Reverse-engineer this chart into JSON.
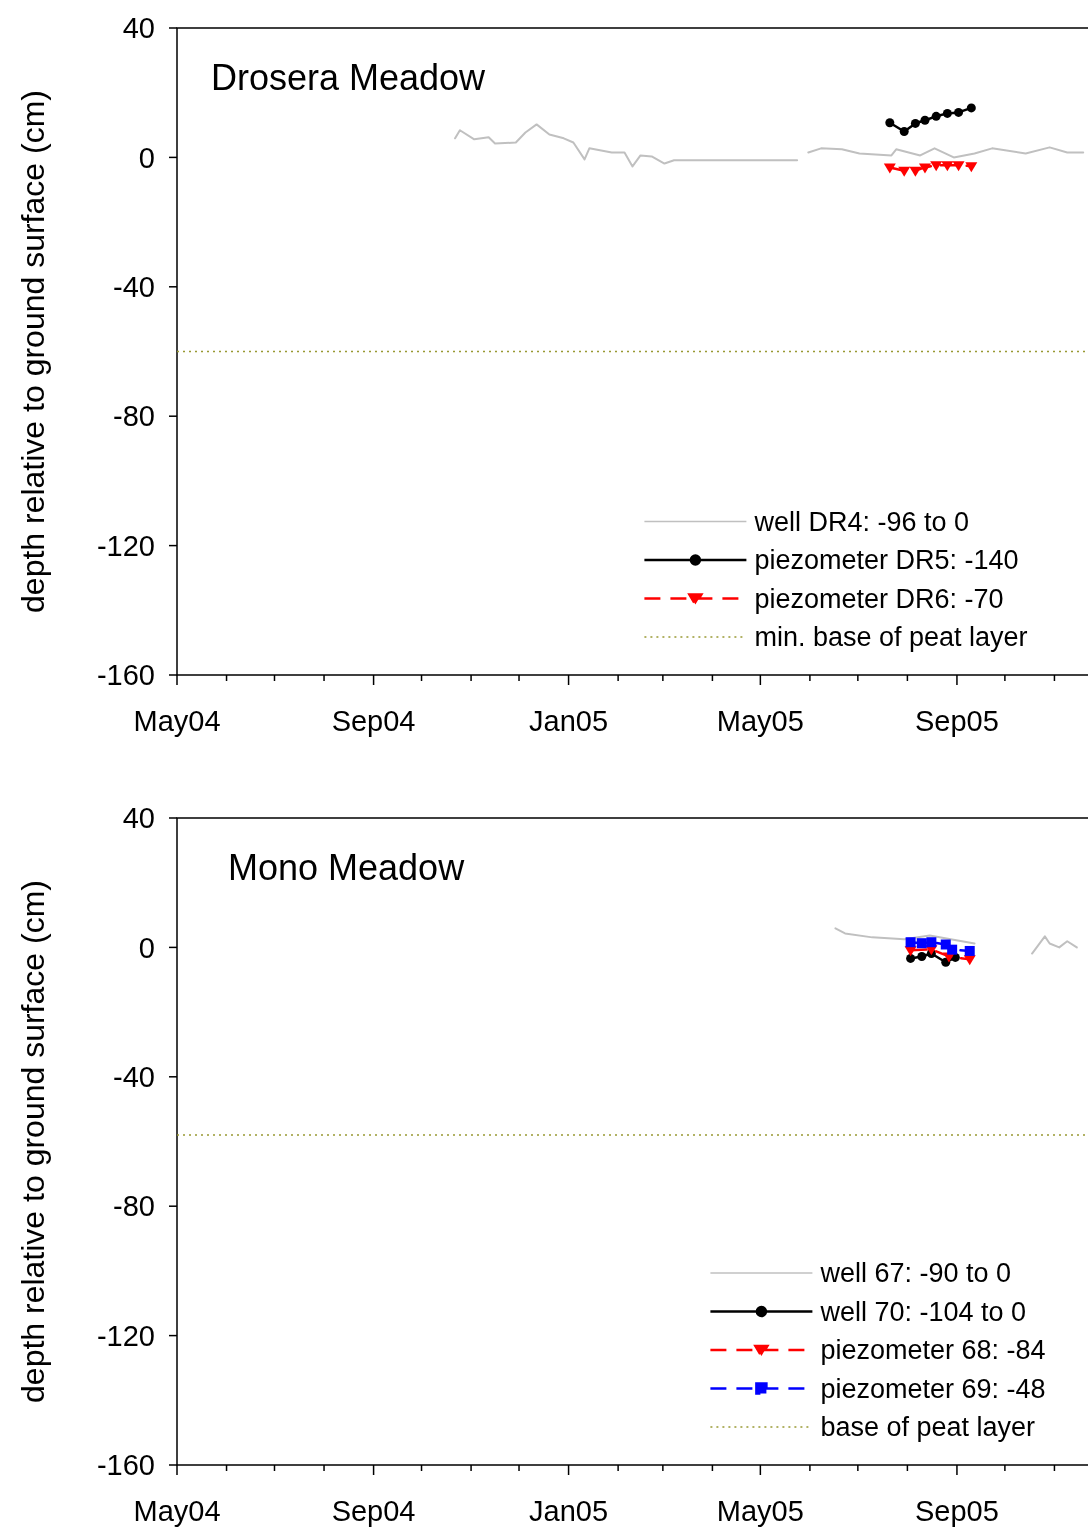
{
  "chart_data": [
    {
      "type": "line",
      "title": "Drosera Meadow",
      "ylabel": "depth relative to ground surface (cm)",
      "xlim": [
        "2004-05-01",
        "2005-11-22"
      ],
      "ylim": [
        -160,
        40
      ],
      "yticks": [
        -160,
        -120,
        -80,
        -40,
        0,
        40
      ],
      "xticks": [
        {
          "value": "2004-05-01",
          "label": "May04"
        },
        {
          "value": "2004-06-01",
          "label": null
        },
        {
          "value": "2004-07-01",
          "label": null
        },
        {
          "value": "2004-08-01",
          "label": null
        },
        {
          "value": "2004-09-01",
          "label": "Sep04"
        },
        {
          "value": "2004-10-01",
          "label": null
        },
        {
          "value": "2004-11-01",
          "label": null
        },
        {
          "value": "2004-12-01",
          "label": null
        },
        {
          "value": "2005-01-01",
          "label": "Jan05"
        },
        {
          "value": "2005-02-01",
          "label": null
        },
        {
          "value": "2005-03-01",
          "label": null
        },
        {
          "value": "2005-04-01",
          "label": null
        },
        {
          "value": "2005-05-01",
          "label": "May05"
        },
        {
          "value": "2005-06-01",
          "label": null
        },
        {
          "value": "2005-07-01",
          "label": null
        },
        {
          "value": "2005-08-01",
          "label": null
        },
        {
          "value": "2005-09-01",
          "label": "Sep05"
        },
        {
          "value": "2005-10-01",
          "label": null
        },
        {
          "value": "2005-11-01",
          "label": null
        }
      ],
      "legend": "bottom right",
      "grid": false,
      "series": [
        {
          "name": "well DR4: -96 to 0",
          "color": "#c0c0c0",
          "marker": "none",
          "line_style": "solid",
          "x": [
            "2004-10-22",
            "2004-10-25",
            "2004-11-03",
            "2004-11-12",
            "2004-11-16",
            "2004-11-29",
            "2004-12-05",
            "2004-12-12",
            "2004-12-20",
            "2004-12-29",
            "2005-01-04",
            "2005-01-11",
            "2005-01-14",
            "2005-01-28",
            "2005-02-05",
            "2005-02-10",
            "2005-02-15",
            "2005-02-22",
            "2005-03-02",
            "2005-03-08",
            "2005-03-24",
            "2005-05-24",
            "2005-05-28",
            "2005-05-31",
            "2005-06-08",
            "2005-06-21",
            "2005-07-02",
            "2005-07-22",
            "2005-07-25",
            "2005-08-09",
            "2005-08-18",
            "2005-08-30",
            "2005-09-12",
            "2005-09-23",
            "2005-10-14",
            "2005-10-29",
            "2005-11-09",
            "2005-11-19"
          ],
          "values": [
            5.9,
            8.4,
            5.6,
            6.2,
            4.3,
            4.6,
            7.7,
            10.2,
            7.1,
            5.9,
            4.6,
            -0.6,
            2.8,
            1.5,
            1.5,
            -2.8,
            0.6,
            0.3,
            -1.9,
            -0.9,
            -0.9,
            -0.9,
            null,
            1.5,
            2.8,
            2.5,
            1.2,
            0.6,
            2.5,
            0.6,
            2.8,
            0,
            1.2,
            2.8,
            1.2,
            3.1,
            1.5,
            1.5
          ]
        },
        {
          "name": "piezometer DR5: -140",
          "color": "#000000",
          "marker": "circle",
          "line_style": "solid",
          "x": [
            "2005-07-21",
            "2005-07-30",
            "2005-08-06",
            "2005-08-12",
            "2005-08-19",
            "2005-08-26",
            "2005-09-02",
            "2005-09-10"
          ],
          "values": [
            10.7,
            8,
            10.5,
            11.5,
            12.7,
            13.6,
            13.9,
            15.3
          ]
        },
        {
          "name": "piezometer DR6: -70",
          "color": "#ff0000",
          "marker": "triangle",
          "line_style": "dashed",
          "x": [
            "2005-07-21",
            "2005-07-30",
            "2005-08-06",
            "2005-08-12",
            "2005-08-19",
            "2005-08-26",
            "2005-09-02",
            "2005-09-10"
          ],
          "values": [
            -3.1,
            -4.1,
            -4.1,
            -3.1,
            -2.4,
            -2.4,
            -2.4,
            -2.7
          ]
        }
      ],
      "ref_lines": [
        {
          "axis": "y",
          "value": -60,
          "label": "min. base of peat layer",
          "color": "#999933",
          "line_style": "dotted"
        }
      ]
    },
    {
      "type": "line",
      "title": "Mono Meadow",
      "ylabel": "depth relative to ground surface (cm)",
      "xlim": [
        "2004-05-01",
        "2005-11-22"
      ],
      "ylim": [
        -160,
        40
      ],
      "yticks": [
        -160,
        -120,
        -80,
        -40,
        0,
        40
      ],
      "xticks": [
        {
          "value": "2004-05-01",
          "label": "May04"
        },
        {
          "value": "2004-06-01",
          "label": null
        },
        {
          "value": "2004-07-01",
          "label": null
        },
        {
          "value": "2004-08-01",
          "label": null
        },
        {
          "value": "2004-09-01",
          "label": "Sep04"
        },
        {
          "value": "2004-10-01",
          "label": null
        },
        {
          "value": "2004-11-01",
          "label": null
        },
        {
          "value": "2004-12-01",
          "label": null
        },
        {
          "value": "2005-01-01",
          "label": "Jan05"
        },
        {
          "value": "2005-02-01",
          "label": null
        },
        {
          "value": "2005-03-01",
          "label": null
        },
        {
          "value": "2005-04-01",
          "label": null
        },
        {
          "value": "2005-05-01",
          "label": "May05"
        },
        {
          "value": "2005-06-01",
          "label": null
        },
        {
          "value": "2005-07-01",
          "label": null
        },
        {
          "value": "2005-08-01",
          "label": null
        },
        {
          "value": "2005-09-01",
          "label": "Sep05"
        },
        {
          "value": "2005-10-01",
          "label": null
        },
        {
          "value": "2005-11-01",
          "label": null
        }
      ],
      "legend": "bottom right",
      "grid": false,
      "series": [
        {
          "name": "well 67: -90 to 0",
          "color": "#c0c0c0",
          "marker": "none",
          "line_style": "solid",
          "x": [
            "2005-06-17",
            "2005-06-23",
            "2005-07-10",
            "2005-07-30",
            "2005-08-15",
            "2005-09-12",
            "2005-10-01",
            "2005-10-18",
            "2005-10-26",
            "2005-10-29",
            "2005-11-04",
            "2005-11-09",
            "2005-11-15"
          ],
          "values": [
            5.9,
            4.3,
            3.1,
            2.5,
            3.7,
            1.2,
            null,
            -1.9,
            3.4,
            1.2,
            0,
            1.9,
            0
          ]
        },
        {
          "name": "well 70: -104 to 0",
          "color": "#000000",
          "marker": "circle",
          "line_style": "solid",
          "x": [
            "2005-08-03",
            "2005-08-10",
            "2005-08-16",
            "2005-08-25",
            "2005-08-31"
          ],
          "values": [
            -3.4,
            -2.8,
            -1.9,
            -4.6,
            -3.1
          ]
        },
        {
          "name": "piezometer 68: -84",
          "color": "#ff0000",
          "marker": "triangle",
          "line_style": "dashed",
          "x": [
            "2005-08-03",
            "2005-08-16",
            "2005-08-27",
            "2005-09-09"
          ],
          "values": [
            -0.9,
            -0.6,
            -2.8,
            -3.7
          ]
        },
        {
          "name": "piezometer 69: -48",
          "color": "#0000ff",
          "marker": "square",
          "line_style": "dashed",
          "x": [
            "2005-08-03",
            "2005-08-10",
            "2005-08-16",
            "2005-08-25",
            "2005-08-29",
            "2005-09-09"
          ],
          "values": [
            1.6,
            1.3,
            1.6,
            0.9,
            -0.7,
            -1.1
          ]
        }
      ],
      "ref_lines": [
        {
          "axis": "y",
          "value": -58,
          "label": "base of peat layer",
          "color": "#999933",
          "line_style": "dotted"
        }
      ]
    }
  ]
}
